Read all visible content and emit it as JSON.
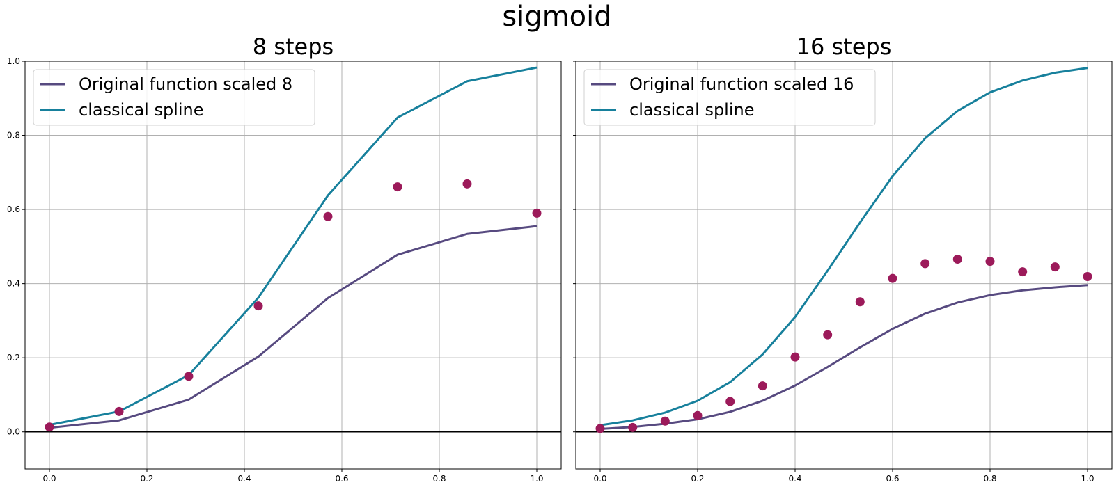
{
  "figure": {
    "title": "sigmoid",
    "colors": {
      "original": "#574a80",
      "spline": "#17809c",
      "points": "#9c1a5a",
      "grid": "#b0b0b0",
      "zero_line": "#000000"
    }
  },
  "chart_data": [
    {
      "type": "line",
      "title": "8 steps",
      "xlabel": "",
      "ylabel": "",
      "xlim": [
        -0.05,
        1.05
      ],
      "ylim": [
        -0.1,
        1.0
      ],
      "xticks": [
        "0.0",
        "0.2",
        "0.4",
        "0.6",
        "0.8",
        "1.0"
      ],
      "yticks": [
        "0.0",
        "0.2",
        "0.4",
        "0.6",
        "0.8",
        "1.0"
      ],
      "grid": true,
      "legend_position": "top-left",
      "series": [
        {
          "name": "Original function scaled 8",
          "kind": "line",
          "x": [
            0.0,
            0.1429,
            0.2857,
            0.4286,
            0.5714,
            0.7143,
            0.8571,
            1.0
          ],
          "y": [
            0.011,
            0.031,
            0.087,
            0.203,
            0.361,
            0.478,
            0.534,
            0.555
          ]
        },
        {
          "name": "classical spline",
          "kind": "line",
          "x": [
            0.0,
            0.1429,
            0.2857,
            0.4286,
            0.5714,
            0.7143,
            0.8571,
            1.0
          ],
          "y": [
            0.019,
            0.055,
            0.153,
            0.362,
            0.638,
            0.848,
            0.946,
            0.983
          ]
        },
        {
          "name": "",
          "kind": "scatter",
          "x": [
            0.0,
            0.1429,
            0.2857,
            0.4286,
            0.5714,
            0.7143,
            0.8571,
            1.0
          ],
          "y": [
            0.013,
            0.055,
            0.15,
            0.34,
            0.581,
            0.661,
            0.669,
            0.59
          ]
        }
      ]
    },
    {
      "type": "line",
      "title": "16 steps",
      "xlabel": "",
      "ylabel": "",
      "xlim": [
        -0.05,
        1.05
      ],
      "ylim": [
        -0.1,
        1.0
      ],
      "xticks": [
        "0.0",
        "0.2",
        "0.4",
        "0.6",
        "0.8",
        "1.0"
      ],
      "yticks": [
        "0.0",
        "0.2",
        "0.4",
        "0.6",
        "0.8",
        "1.0"
      ],
      "grid": true,
      "legend_position": "top-left",
      "series": [
        {
          "name": "Original function scaled 16",
          "kind": "line",
          "x": [
            0.0,
            0.0667,
            0.1333,
            0.2,
            0.2667,
            0.3333,
            0.4,
            0.4667,
            0.5333,
            0.6,
            0.6667,
            0.7333,
            0.8,
            0.8667,
            0.9333,
            1.0
          ],
          "y": [
            0.008,
            0.013,
            0.022,
            0.034,
            0.054,
            0.084,
            0.125,
            0.175,
            0.228,
            0.278,
            0.319,
            0.349,
            0.369,
            0.382,
            0.39,
            0.396
          ]
        },
        {
          "name": "classical spline",
          "kind": "line",
          "x": [
            0.0,
            0.0667,
            0.1333,
            0.2,
            0.2667,
            0.3333,
            0.4,
            0.4667,
            0.5333,
            0.6,
            0.6667,
            0.7333,
            0.8,
            0.8667,
            0.9333,
            1.0
          ],
          "y": [
            0.018,
            0.031,
            0.052,
            0.084,
            0.134,
            0.209,
            0.31,
            0.435,
            0.565,
            0.69,
            0.792,
            0.866,
            0.916,
            0.948,
            0.969,
            0.982
          ]
        },
        {
          "name": "",
          "kind": "scatter",
          "x": [
            0.0,
            0.0667,
            0.1333,
            0.2,
            0.2667,
            0.3333,
            0.4,
            0.4667,
            0.5333,
            0.6,
            0.6667,
            0.7333,
            0.8,
            0.8667,
            0.9333,
            1.0
          ],
          "y": [
            0.009,
            0.012,
            0.029,
            0.044,
            0.082,
            0.124,
            0.202,
            0.262,
            0.351,
            0.414,
            0.454,
            0.466,
            0.46,
            0.432,
            0.445,
            0.419
          ]
        }
      ]
    }
  ]
}
